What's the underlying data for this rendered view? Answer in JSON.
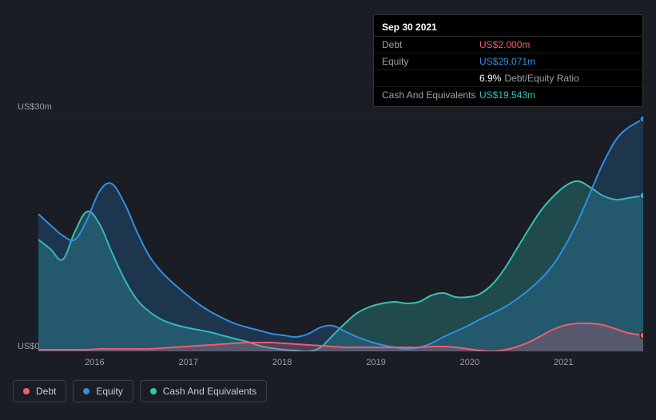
{
  "tooltip": {
    "date": "Sep 30 2021",
    "rows": [
      {
        "label": "Debt",
        "value": "US$2.000m",
        "color": "#f05b6e"
      },
      {
        "label": "Equity",
        "value": "US$29.071m",
        "color": "#2f8fe3"
      },
      {
        "label": "",
        "value": "6.9%",
        "suffix": "Debt/Equity Ratio",
        "color": "#ffffff"
      },
      {
        "label": "Cash And Equivalents",
        "value": "US$19.543m",
        "color": "#36c2b4"
      }
    ]
  },
  "chart": {
    "type": "area",
    "background": "#1a1d24",
    "plot_background": "#1a1d24",
    "grid_color": "#2b2f38",
    "axis_label_color": "#9aa0a8",
    "axis_fontsize": 11,
    "ymax": 30,
    "ymin": 0,
    "y_ticks": [
      {
        "v": 30,
        "label": "US$30m"
      },
      {
        "v": 0,
        "label": "US$0"
      }
    ],
    "x_years": [
      2015.4,
      2016,
      2017,
      2018,
      2019,
      2020,
      2021,
      2021.85
    ],
    "x_tick_labels": [
      "2016",
      "2017",
      "2018",
      "2019",
      "2020",
      "2021"
    ],
    "series": [
      {
        "name": "Cash And Equivalents",
        "color": "#36c2b4",
        "fill_opacity": 0.28,
        "line_width": 2,
        "points_y": [
          14.0,
          12.8,
          11.5,
          15.0,
          17.5,
          16.0,
          12.5,
          9.0,
          6.5,
          5.0,
          4.0,
          3.4,
          3.0,
          2.7,
          2.4,
          2.0,
          1.6,
          1.2,
          0.7,
          0.4,
          0.2,
          0.1,
          0.0,
          0.5,
          2.0,
          3.5,
          4.8,
          5.6,
          6.0,
          6.2,
          6.0,
          6.2,
          7.0,
          7.3,
          6.8,
          6.8,
          7.2,
          8.5,
          10.5,
          13.0,
          15.5,
          17.8,
          19.5,
          20.8,
          21.3,
          20.5,
          19.5,
          19.0,
          19.2,
          19.5
        ],
        "points_x": [
          2015.4,
          2015.53,
          2015.66,
          2015.79,
          2015.92,
          2016.05,
          2016.18,
          2016.32,
          2016.45,
          2016.58,
          2016.71,
          2016.84,
          2016.97,
          2017.1,
          2017.23,
          2017.36,
          2017.49,
          2017.63,
          2017.76,
          2017.89,
          2018.02,
          2018.15,
          2018.28,
          2018.41,
          2018.54,
          2018.67,
          2018.8,
          2018.94,
          2019.07,
          2019.2,
          2019.33,
          2019.46,
          2019.59,
          2019.72,
          2019.85,
          2019.98,
          2020.11,
          2020.25,
          2020.38,
          2020.51,
          2020.64,
          2020.77,
          2020.9,
          2021.03,
          2021.16,
          2021.29,
          2021.42,
          2021.56,
          2021.69,
          2021.85
        ],
        "end_marker": true
      },
      {
        "name": "Equity",
        "color": "#2f8fe3",
        "fill_opacity": 0.22,
        "line_width": 2,
        "points_y": [
          17.2,
          15.8,
          14.5,
          14.0,
          16.5,
          20.0,
          21.0,
          18.5,
          15.0,
          12.0,
          10.0,
          8.5,
          7.2,
          6.0,
          5.0,
          4.2,
          3.5,
          3.0,
          2.6,
          2.2,
          2.0,
          1.8,
          2.2,
          3.0,
          3.2,
          2.5,
          1.8,
          1.2,
          0.8,
          0.5,
          0.3,
          0.5,
          1.0,
          1.8,
          2.5,
          3.2,
          4.0,
          4.8,
          5.6,
          6.6,
          7.8,
          9.2,
          11.0,
          13.5,
          16.5,
          20.0,
          23.5,
          26.5,
          28.0,
          29.1
        ],
        "points_x": [
          2015.4,
          2015.53,
          2015.66,
          2015.79,
          2015.92,
          2016.05,
          2016.18,
          2016.32,
          2016.45,
          2016.58,
          2016.71,
          2016.84,
          2016.97,
          2017.1,
          2017.23,
          2017.36,
          2017.49,
          2017.63,
          2017.76,
          2017.89,
          2018.02,
          2018.15,
          2018.28,
          2018.41,
          2018.54,
          2018.67,
          2018.8,
          2018.94,
          2019.07,
          2019.2,
          2019.33,
          2019.46,
          2019.59,
          2019.72,
          2019.85,
          2019.98,
          2020.11,
          2020.25,
          2020.38,
          2020.51,
          2020.64,
          2020.77,
          2020.9,
          2021.03,
          2021.16,
          2021.29,
          2021.42,
          2021.56,
          2021.69,
          2021.85
        ],
        "end_marker": true
      },
      {
        "name": "Debt",
        "color": "#f05b6e",
        "fill_opacity": 0.25,
        "line_width": 2,
        "points_y": [
          0.2,
          0.2,
          0.2,
          0.2,
          0.2,
          0.3,
          0.3,
          0.3,
          0.3,
          0.3,
          0.4,
          0.5,
          0.6,
          0.7,
          0.8,
          0.9,
          1.0,
          1.1,
          1.1,
          1.1,
          1.0,
          0.9,
          0.8,
          0.7,
          0.6,
          0.5,
          0.5,
          0.5,
          0.5,
          0.5,
          0.5,
          0.5,
          0.6,
          0.6,
          0.5,
          0.3,
          0.1,
          0.0,
          0.2,
          0.6,
          1.2,
          2.0,
          2.8,
          3.3,
          3.5,
          3.5,
          3.3,
          2.8,
          2.3,
          2.0
        ],
        "points_x": [
          2015.4,
          2015.53,
          2015.66,
          2015.79,
          2015.92,
          2016.05,
          2016.18,
          2016.32,
          2016.45,
          2016.58,
          2016.71,
          2016.84,
          2016.97,
          2017.1,
          2017.23,
          2017.36,
          2017.49,
          2017.63,
          2017.76,
          2017.89,
          2018.02,
          2018.15,
          2018.28,
          2018.41,
          2018.54,
          2018.67,
          2018.8,
          2018.94,
          2019.07,
          2019.2,
          2019.33,
          2019.46,
          2019.59,
          2019.72,
          2019.85,
          2019.98,
          2020.11,
          2020.25,
          2020.38,
          2020.51,
          2020.64,
          2020.77,
          2020.9,
          2021.03,
          2021.16,
          2021.29,
          2021.42,
          2021.56,
          2021.69,
          2021.85
        ],
        "end_marker": true
      }
    ],
    "legend": [
      {
        "label": "Debt",
        "color": "#f05b6e"
      },
      {
        "label": "Equity",
        "color": "#2f8fe3"
      },
      {
        "label": "Cash And Equivalents",
        "color": "#36c2b4"
      }
    ]
  }
}
